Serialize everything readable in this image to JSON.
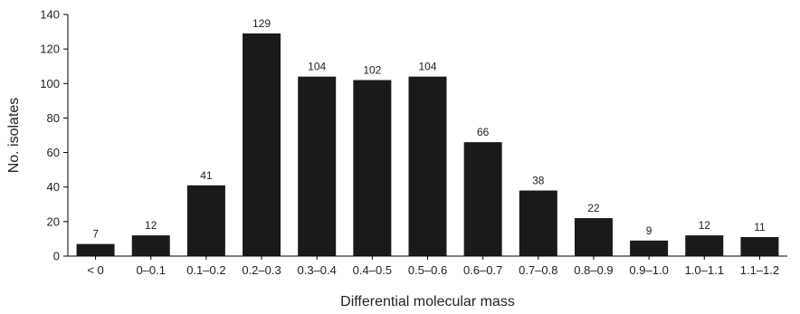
{
  "chart_data": {
    "type": "bar",
    "title": "",
    "xlabel": "Differential molecular mass",
    "ylabel": "No. isolates",
    "ylim": [
      0,
      140
    ],
    "yticks": [
      0,
      20,
      40,
      60,
      80,
      100,
      120,
      140
    ],
    "grid": false,
    "categories": [
      "< 0",
      "0–0.1",
      "0.1–0.2",
      "0.2–0.3",
      "0.3–0.4",
      "0.4–0.5",
      "0.5–0.6",
      "0.6–0.7",
      "0.7–0.8",
      "0.8–0.9",
      "0.9–1.0",
      "1.0–1.1",
      "1.1–1.2"
    ],
    "values": [
      7,
      12,
      41,
      129,
      104,
      102,
      104,
      66,
      38,
      22,
      9,
      12,
      11
    ],
    "colors": {
      "bar": "#1a1a1a",
      "axis": "#000000",
      "text": "#222222"
    }
  }
}
